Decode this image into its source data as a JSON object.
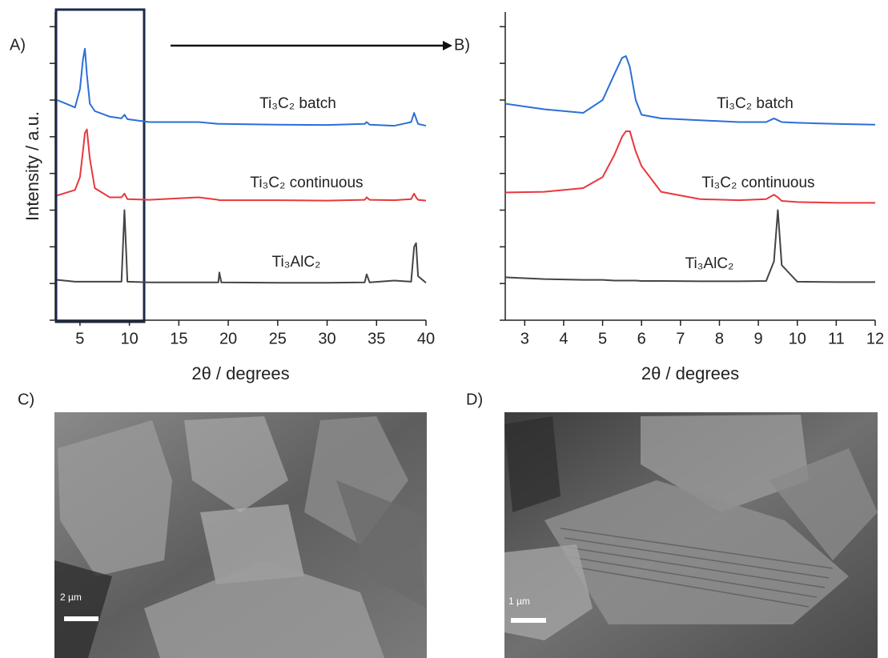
{
  "chart_data": [
    {
      "type": "line",
      "panel_label": "A)",
      "xlabel": "2θ / degrees",
      "ylabel": "Intensity / a.u.",
      "xlim": [
        2.5,
        40
      ],
      "xticks": [
        5,
        10,
        15,
        20,
        25,
        30,
        35,
        40
      ],
      "ylim": [
        0,
        8.4
      ],
      "yticks": [
        0,
        1,
        2,
        3,
        4,
        5,
        6,
        7,
        8
      ],
      "ytick_labels": false,
      "x": [
        2.7,
        4.5,
        5.0,
        5.3,
        5.5,
        5.7,
        6.0,
        6.5,
        8,
        9.2,
        9.5,
        9.8,
        12,
        17,
        19,
        19.1,
        19.3,
        25,
        30,
        33.8,
        34,
        34.3,
        36.8,
        38.5,
        38.8,
        39,
        39.2,
        40
      ],
      "series": [
        {
          "name": "Ti₃C₂ batch",
          "color": "#2b6fd6",
          "values": [
            6.0,
            5.8,
            6.3,
            7.1,
            7.4,
            6.7,
            5.9,
            5.7,
            5.55,
            5.5,
            5.6,
            5.48,
            5.4,
            5.4,
            5.35,
            5.35,
            5.35,
            5.33,
            5.32,
            5.35,
            5.4,
            5.33,
            5.3,
            5.4,
            5.65,
            5.5,
            5.35,
            5.3
          ]
        },
        {
          "name": "Ti₃C₂ continuous",
          "color": "#e8383d",
          "values": [
            3.4,
            3.55,
            3.9,
            4.6,
            5.1,
            5.2,
            4.4,
            3.6,
            3.35,
            3.35,
            3.45,
            3.3,
            3.28,
            3.35,
            3.28,
            3.27,
            3.27,
            3.27,
            3.26,
            3.28,
            3.35,
            3.28,
            3.27,
            3.3,
            3.45,
            3.35,
            3.28,
            3.26
          ]
        },
        {
          "name": "Ti₃AlC₂",
          "color": "#444444",
          "values": [
            1.1,
            1.05,
            1.05,
            1.05,
            1.05,
            1.05,
            1.05,
            1.05,
            1.05,
            1.05,
            3.0,
            1.05,
            1.03,
            1.03,
            1.03,
            1.3,
            1.03,
            1.02,
            1.02,
            1.03,
            1.25,
            1.03,
            1.08,
            1.05,
            2.0,
            2.1,
            1.2,
            1.02
          ]
        }
      ]
    },
    {
      "type": "line",
      "panel_label": "B)",
      "xlabel": "2θ / degrees",
      "xlim": [
        2.5,
        12
      ],
      "xticks": [
        3,
        4,
        5,
        6,
        7,
        8,
        9,
        10,
        11,
        12
      ],
      "ylim": [
        0,
        8.4
      ],
      "yticks": [
        0,
        1,
        2,
        3,
        4,
        5,
        6,
        7,
        8
      ],
      "ytick_labels": false,
      "x": [
        2.5,
        3.5,
        4.5,
        5.0,
        5.3,
        5.5,
        5.6,
        5.7,
        5.85,
        6.0,
        6.5,
        7.5,
        8.5,
        9.2,
        9.4,
        9.5,
        9.6,
        10,
        11,
        12
      ],
      "series": [
        {
          "name": "Ti₃C₂ batch",
          "color": "#2b6fd6",
          "values": [
            5.9,
            5.75,
            5.65,
            6.0,
            6.7,
            7.15,
            7.2,
            6.9,
            6.0,
            5.6,
            5.5,
            5.45,
            5.4,
            5.4,
            5.5,
            5.45,
            5.4,
            5.38,
            5.35,
            5.33
          ]
        },
        {
          "name": "Ti₃C₂ continuous",
          "color": "#e8383d",
          "values": [
            3.48,
            3.5,
            3.6,
            3.9,
            4.5,
            5.0,
            5.15,
            5.15,
            4.6,
            4.2,
            3.5,
            3.3,
            3.27,
            3.3,
            3.42,
            3.35,
            3.25,
            3.22,
            3.2,
            3.2
          ]
        },
        {
          "name": "Ti₃AlC₂",
          "color": "#444444",
          "values": [
            1.17,
            1.12,
            1.1,
            1.1,
            1.08,
            1.08,
            1.08,
            1.08,
            1.08,
            1.07,
            1.07,
            1.06,
            1.06,
            1.07,
            1.6,
            3.0,
            1.5,
            1.05,
            1.04,
            1.04
          ]
        }
      ]
    }
  ],
  "images": [
    {
      "panel_label": "C)",
      "scale_bar": "2 µm"
    },
    {
      "panel_label": "D)",
      "scale_bar": "1 µm"
    }
  ]
}
